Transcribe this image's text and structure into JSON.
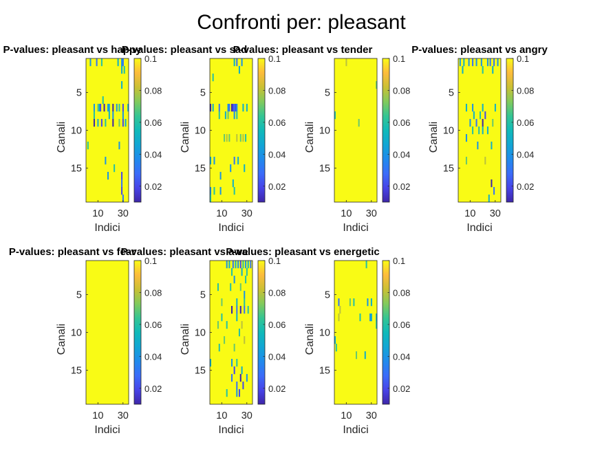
{
  "figure_title": "Confronti per: pleasant",
  "chart_data": [
    {
      "type": "heatmap",
      "title": "P-values: pleasant vs happy",
      "xlabel": "Indici",
      "ylabel": "Canali",
      "x_ticks": [
        10,
        30
      ],
      "y_ticks": [
        5,
        10,
        15
      ],
      "rows": 19,
      "cols": 34,
      "clim": [
        0.01,
        0.1
      ],
      "colorbar_ticks": [
        0.02,
        0.04,
        0.06,
        0.08,
        0.1
      ],
      "colormap": "parula",
      "cells": [
        [
          1,
          4,
          0.04
        ],
        [
          1,
          9,
          0.03
        ],
        [
          1,
          13,
          0.06
        ],
        [
          1,
          26,
          0.05
        ],
        [
          1,
          29,
          0.04
        ],
        [
          1,
          30,
          0.03
        ],
        [
          2,
          29,
          0.05
        ],
        [
          2,
          31,
          0.06
        ],
        [
          4,
          29,
          0.05
        ],
        [
          6,
          14,
          0.06
        ],
        [
          7,
          7,
          0.04
        ],
        [
          7,
          10,
          0.07
        ],
        [
          7,
          11,
          0.05
        ],
        [
          7,
          12,
          0.02
        ],
        [
          7,
          15,
          0.01
        ],
        [
          7,
          18,
          0.04
        ],
        [
          7,
          19,
          0.05
        ],
        [
          7,
          22,
          0.01
        ],
        [
          7,
          25,
          0.04
        ],
        [
          7,
          27,
          0.06
        ],
        [
          7,
          30,
          0.02
        ],
        [
          7,
          34,
          0.05
        ],
        [
          8,
          7,
          0.06
        ],
        [
          8,
          19,
          0.05
        ],
        [
          8,
          22,
          0.04
        ],
        [
          8,
          30,
          0.04
        ],
        [
          9,
          7,
          0.01
        ],
        [
          9,
          10,
          0.05
        ],
        [
          9,
          13,
          0.02
        ],
        [
          9,
          16,
          0.06
        ],
        [
          9,
          22,
          0.01
        ],
        [
          9,
          27,
          0.07
        ],
        [
          9,
          30,
          0.02
        ],
        [
          9,
          32,
          0.05
        ],
        [
          12,
          2,
          0.06
        ],
        [
          12,
          27,
          0.04
        ],
        [
          14,
          16,
          0.04
        ],
        [
          15,
          23,
          0.06
        ],
        [
          16,
          18,
          0.04
        ],
        [
          16,
          29,
          0.02
        ],
        [
          17,
          29,
          0.03
        ],
        [
          18,
          29,
          0.02
        ],
        [
          19,
          30,
          0.03
        ]
      ]
    },
    {
      "type": "heatmap",
      "title": "P-values: pleasant vs sad",
      "xlabel": "Indici",
      "ylabel": "Canali",
      "x_ticks": [
        10,
        30
      ],
      "y_ticks": [
        5,
        10,
        15
      ],
      "rows": 19,
      "cols": 34,
      "clim": [
        0.01,
        0.1
      ],
      "colorbar_ticks": [
        0.02,
        0.04,
        0.06,
        0.08,
        0.1
      ],
      "colormap": "parula",
      "cells": [
        [
          1,
          20,
          0.05
        ],
        [
          1,
          22,
          0.03
        ],
        [
          1,
          26,
          0.04
        ],
        [
          2,
          24,
          0.05
        ],
        [
          3,
          3,
          0.06
        ],
        [
          7,
          1,
          0.01
        ],
        [
          7,
          3,
          0.05
        ],
        [
          7,
          8,
          0.03
        ],
        [
          7,
          15,
          0.04
        ],
        [
          7,
          16,
          0.03
        ],
        [
          7,
          18,
          0.01
        ],
        [
          7,
          19,
          0.02
        ],
        [
          7,
          20,
          0.03
        ],
        [
          7,
          21,
          0.02
        ],
        [
          7,
          22,
          0.04
        ],
        [
          7,
          27,
          0.05
        ],
        [
          7,
          30,
          0.05
        ],
        [
          8,
          8,
          0.06
        ],
        [
          8,
          13,
          0.05
        ],
        [
          8,
          15,
          0.07
        ],
        [
          8,
          20,
          0.04
        ],
        [
          8,
          22,
          0.06
        ],
        [
          11,
          12,
          0.07
        ],
        [
          11,
          14,
          0.08
        ],
        [
          11,
          16,
          0.07
        ],
        [
          11,
          22,
          0.08
        ],
        [
          11,
          25,
          0.07
        ],
        [
          11,
          27,
          0.08
        ],
        [
          11,
          29,
          0.06
        ],
        [
          14,
          1,
          0.05
        ],
        [
          14,
          4,
          0.04
        ],
        [
          14,
          20,
          0.03
        ],
        [
          14,
          23,
          0.05
        ],
        [
          15,
          17,
          0.04
        ],
        [
          15,
          28,
          0.05
        ],
        [
          16,
          9,
          0.04
        ],
        [
          17,
          19,
          0.05
        ],
        [
          18,
          1,
          0.04
        ],
        [
          18,
          4,
          0.06
        ],
        [
          18,
          9,
          0.04
        ],
        [
          18,
          20,
          0.06
        ],
        [
          19,
          1,
          0.06
        ]
      ]
    },
    {
      "type": "heatmap",
      "title": "P-values: pleasant vs tender",
      "xlabel": "Indici",
      "ylabel": "Canali",
      "x_ticks": [
        10,
        30
      ],
      "y_ticks": [
        5,
        10,
        15
      ],
      "rows": 19,
      "cols": 34,
      "clim": [
        0.01,
        0.1
      ],
      "colorbar_ticks": [
        0.02,
        0.04,
        0.06,
        0.08,
        0.1
      ],
      "colormap": "parula",
      "cells": [
        [
          1,
          10,
          0.08
        ],
        [
          4,
          34,
          0.07
        ],
        [
          8,
          1,
          0.06
        ],
        [
          9,
          20,
          0.07
        ]
      ]
    },
    {
      "type": "heatmap",
      "title": "P-values: pleasant vs angry",
      "xlabel": "Indici",
      "ylabel": "Canali",
      "x_ticks": [
        10,
        30
      ],
      "y_ticks": [
        5,
        10,
        15
      ],
      "rows": 19,
      "cols": 34,
      "clim": [
        0.01,
        0.1
      ],
      "colorbar_ticks": [
        0.02,
        0.04,
        0.06,
        0.08,
        0.1
      ],
      "colormap": "parula",
      "cells": [
        [
          1,
          2,
          0.04
        ],
        [
          1,
          5,
          0.05
        ],
        [
          1,
          9,
          0.04
        ],
        [
          1,
          12,
          0.03
        ],
        [
          1,
          15,
          0.04
        ],
        [
          1,
          19,
          0.04
        ],
        [
          1,
          24,
          0.04
        ],
        [
          1,
          26,
          0.03
        ],
        [
          1,
          29,
          0.03
        ],
        [
          1,
          32,
          0.04
        ],
        [
          2,
          4,
          0.05
        ],
        [
          2,
          20,
          0.06
        ],
        [
          2,
          28,
          0.05
        ],
        [
          7,
          7,
          0.05
        ],
        [
          7,
          12,
          0.04
        ],
        [
          7,
          20,
          0.05
        ],
        [
          7,
          30,
          0.05
        ],
        [
          8,
          13,
          0.05
        ],
        [
          8,
          18,
          0.06
        ],
        [
          8,
          22,
          0.02
        ],
        [
          9,
          10,
          0.04
        ],
        [
          9,
          15,
          0.03
        ],
        [
          9,
          20,
          0.01
        ],
        [
          9,
          28,
          0.07
        ],
        [
          10,
          12,
          0.06
        ],
        [
          10,
          17,
          0.06
        ],
        [
          10,
          20,
          0.05
        ],
        [
          10,
          24,
          0.05
        ],
        [
          11,
          7,
          0.04
        ],
        [
          12,
          16,
          0.04
        ],
        [
          12,
          27,
          0.05
        ],
        [
          14,
          7,
          0.07
        ],
        [
          14,
          22,
          0.08
        ],
        [
          17,
          27,
          0.01
        ],
        [
          18,
          29,
          0.03
        ],
        [
          19,
          25,
          0.05
        ]
      ]
    },
    {
      "type": "heatmap",
      "title": "P-values: pleasant vs fear",
      "xlabel": "Indici",
      "ylabel": "Canali",
      "x_ticks": [
        10,
        30
      ],
      "y_ticks": [
        5,
        10,
        15
      ],
      "rows": 19,
      "cols": 34,
      "clim": [
        0.01,
        0.1
      ],
      "colorbar_ticks": [
        0.02,
        0.04,
        0.06,
        0.08,
        0.1
      ],
      "colormap": "parula",
      "cells": []
    },
    {
      "type": "heatmap",
      "title": "P-values: pleasant vs awe",
      "xlabel": "Indici",
      "ylabel": "Canali",
      "x_ticks": [
        10,
        30
      ],
      "y_ticks": [
        5,
        10,
        15
      ],
      "rows": 19,
      "cols": 34,
      "clim": [
        0.01,
        0.1
      ],
      "colorbar_ticks": [
        0.02,
        0.04,
        0.06,
        0.08,
        0.1
      ],
      "colormap": "parula",
      "cells": [
        [
          1,
          14,
          0.04
        ],
        [
          1,
          16,
          0.05
        ],
        [
          1,
          19,
          0.03
        ],
        [
          1,
          21,
          0.05
        ],
        [
          1,
          23,
          0.04
        ],
        [
          1,
          25,
          0.02
        ],
        [
          1,
          27,
          0.06
        ],
        [
          1,
          29,
          0.04
        ],
        [
          1,
          31,
          0.05
        ],
        [
          1,
          33,
          0.03
        ],
        [
          2,
          18,
          0.06
        ],
        [
          2,
          26,
          0.05
        ],
        [
          2,
          30,
          0.06
        ],
        [
          3,
          20,
          0.04
        ],
        [
          3,
          29,
          0.06
        ],
        [
          4,
          7,
          0.06
        ],
        [
          4,
          17,
          0.06
        ],
        [
          4,
          25,
          0.07
        ],
        [
          5,
          28,
          0.04
        ],
        [
          6,
          10,
          0.07
        ],
        [
          6,
          22,
          0.05
        ],
        [
          6,
          28,
          0.06
        ],
        [
          7,
          18,
          0.01
        ],
        [
          7,
          22,
          0.03
        ],
        [
          7,
          25,
          0.01
        ],
        [
          7,
          28,
          0.03
        ],
        [
          7,
          31,
          0.06
        ],
        [
          8,
          10,
          0.06
        ],
        [
          8,
          22,
          0.05
        ],
        [
          9,
          7,
          0.07
        ],
        [
          9,
          14,
          0.06
        ],
        [
          9,
          26,
          0.08
        ],
        [
          10,
          24,
          0.06
        ],
        [
          11,
          12,
          0.07
        ],
        [
          11,
          28,
          0.08
        ],
        [
          12,
          8,
          0.06
        ],
        [
          12,
          20,
          0.07
        ],
        [
          14,
          1,
          0.05
        ],
        [
          14,
          18,
          0.04
        ],
        [
          14,
          22,
          0.06
        ],
        [
          15,
          20,
          0.02
        ],
        [
          15,
          26,
          0.05
        ],
        [
          16,
          18,
          0.03
        ],
        [
          16,
          25,
          0.01
        ],
        [
          16,
          30,
          0.04
        ],
        [
          17,
          22,
          0.03
        ],
        [
          17,
          27,
          0.02
        ],
        [
          18,
          14,
          0.06
        ],
        [
          18,
          22,
          0.04
        ],
        [
          18,
          24,
          0.02
        ]
      ]
    },
    {
      "type": "heatmap",
      "title": "P-values: pleasant vs energetic",
      "xlabel": "Indici",
      "ylabel": "Canali",
      "x_ticks": [
        10,
        30
      ],
      "y_ticks": [
        5,
        10,
        15
      ],
      "rows": 19,
      "cols": 34,
      "clim": [
        0.01,
        0.1
      ],
      "colorbar_ticks": [
        0.02,
        0.04,
        0.06,
        0.08,
        0.1
      ],
      "colormap": "parula",
      "cells": [
        [
          1,
          26,
          0.06
        ],
        [
          6,
          4,
          0.03
        ],
        [
          6,
          13,
          0.07
        ],
        [
          6,
          16,
          0.06
        ],
        [
          6,
          27,
          0.04
        ],
        [
          6,
          30,
          0.05
        ],
        [
          7,
          5,
          0.08
        ],
        [
          8,
          4,
          0.08
        ],
        [
          8,
          21,
          0.06
        ],
        [
          8,
          29,
          0.04
        ],
        [
          8,
          30,
          0.05
        ],
        [
          8,
          34,
          0.05
        ],
        [
          9,
          34,
          0.06
        ],
        [
          11,
          1,
          0.05
        ],
        [
          12,
          2,
          0.06
        ],
        [
          13,
          18,
          0.07
        ],
        [
          13,
          25,
          0.05
        ]
      ]
    }
  ]
}
